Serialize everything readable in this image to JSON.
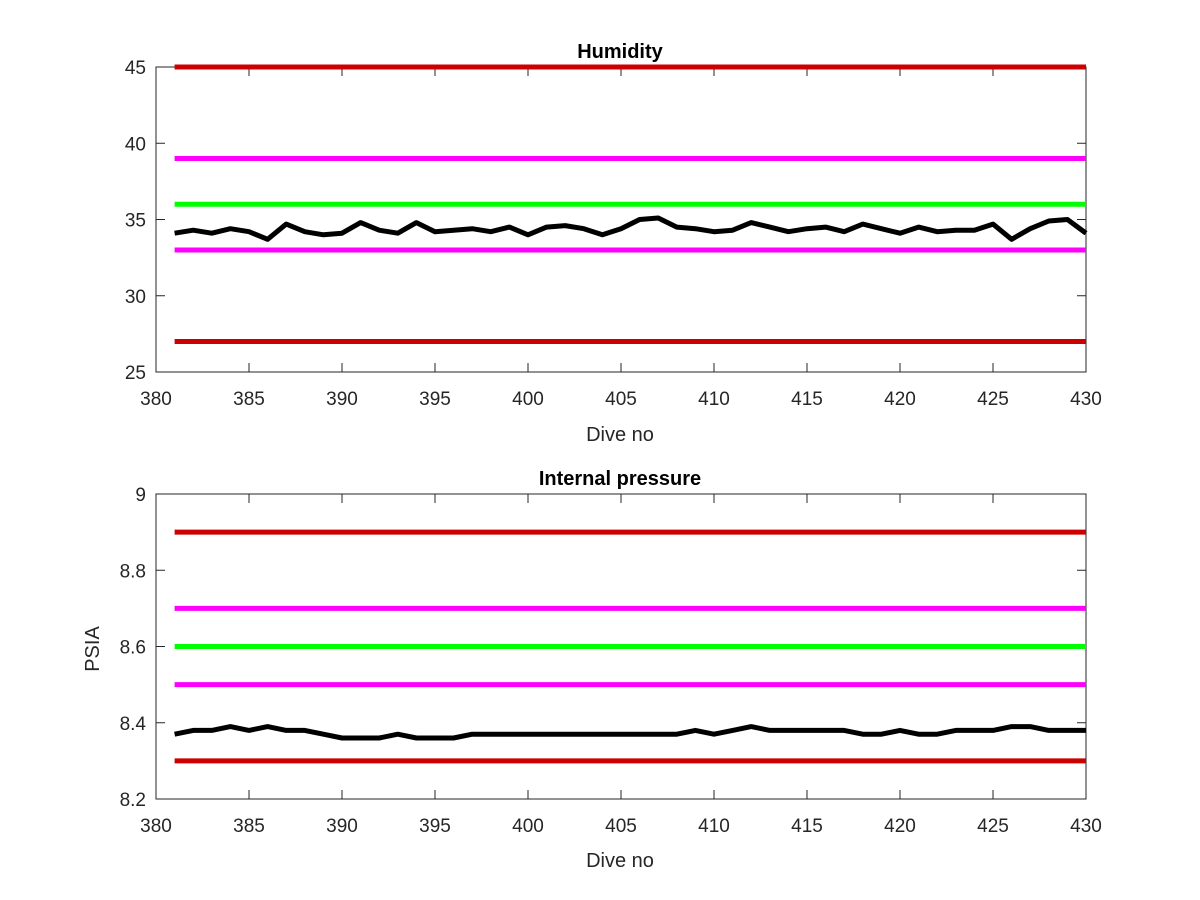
{
  "chart_data": [
    {
      "type": "line",
      "title": "Humidity",
      "xlabel": "Dive no",
      "ylabel": "",
      "xlim": [
        380,
        430
      ],
      "ylim": [
        25,
        45
      ],
      "xticks": [
        380,
        385,
        390,
        395,
        400,
        405,
        410,
        415,
        420,
        425,
        430
      ],
      "yticks": [
        25,
        30,
        35,
        40,
        45
      ],
      "grid": false,
      "thresholds": [
        {
          "value": 45,
          "color": "#cc0000"
        },
        {
          "value": 39,
          "color": "#ff00ff"
        },
        {
          "value": 36,
          "color": "#00ff00"
        },
        {
          "value": 33,
          "color": "#ff00ff"
        },
        {
          "value": 27,
          "color": "#cc0000"
        }
      ],
      "series": [
        {
          "color": "#000000",
          "x": [
            381,
            382,
            383,
            384,
            385,
            386,
            387,
            388,
            389,
            390,
            391,
            392,
            393,
            394,
            395,
            396,
            397,
            398,
            399,
            400,
            401,
            402,
            403,
            404,
            405,
            406,
            407,
            408,
            409,
            410,
            411,
            412,
            413,
            414,
            415,
            416,
            417,
            418,
            419,
            420,
            421,
            422,
            423,
            424,
            425,
            426,
            427,
            428,
            429,
            430
          ],
          "values": [
            34.1,
            34.3,
            34.1,
            34.4,
            34.2,
            33.7,
            34.7,
            34.2,
            34.0,
            34.1,
            34.8,
            34.3,
            34.1,
            34.8,
            34.2,
            34.3,
            34.4,
            34.2,
            34.5,
            34.0,
            34.5,
            34.6,
            34.4,
            34.0,
            34.4,
            35.0,
            35.1,
            34.5,
            34.4,
            34.2,
            34.3,
            34.8,
            34.5,
            34.2,
            34.4,
            34.5,
            34.2,
            34.7,
            34.4,
            34.1,
            34.5,
            34.2,
            34.3,
            34.3,
            34.7,
            33.7,
            34.4,
            34.9,
            35.0,
            34.1
          ]
        }
      ]
    },
    {
      "type": "line",
      "title": "Internal pressure",
      "xlabel": "Dive no",
      "ylabel": "PSIA",
      "xlim": [
        380,
        430
      ],
      "ylim": [
        8.2,
        9.0
      ],
      "xticks": [
        380,
        385,
        390,
        395,
        400,
        405,
        410,
        415,
        420,
        425,
        430
      ],
      "yticks": [
        8.2,
        8.4,
        8.6,
        8.8,
        9.0
      ],
      "ytick_labels": [
        "8.2",
        "8.4",
        "8.6",
        "8.8",
        "9"
      ],
      "grid": false,
      "thresholds": [
        {
          "value": 8.9,
          "color": "#cc0000"
        },
        {
          "value": 8.7,
          "color": "#ff00ff"
        },
        {
          "value": 8.6,
          "color": "#00ff00"
        },
        {
          "value": 8.5,
          "color": "#ff00ff"
        },
        {
          "value": 8.3,
          "color": "#cc0000"
        }
      ],
      "series": [
        {
          "color": "#000000",
          "x": [
            381,
            382,
            383,
            384,
            385,
            386,
            387,
            388,
            389,
            390,
            391,
            392,
            393,
            394,
            395,
            396,
            397,
            398,
            399,
            400,
            401,
            402,
            403,
            404,
            405,
            406,
            407,
            408,
            409,
            410,
            411,
            412,
            413,
            414,
            415,
            416,
            417,
            418,
            419,
            420,
            421,
            422,
            423,
            424,
            425,
            426,
            427,
            428,
            429,
            430
          ],
          "values": [
            8.37,
            8.38,
            8.38,
            8.39,
            8.38,
            8.39,
            8.38,
            8.38,
            8.37,
            8.36,
            8.36,
            8.36,
            8.37,
            8.36,
            8.36,
            8.36,
            8.37,
            8.37,
            8.37,
            8.37,
            8.37,
            8.37,
            8.37,
            8.37,
            8.37,
            8.37,
            8.37,
            8.37,
            8.38,
            8.37,
            8.38,
            8.39,
            8.38,
            8.38,
            8.38,
            8.38,
            8.38,
            8.37,
            8.37,
            8.38,
            8.37,
            8.37,
            8.38,
            8.38,
            8.38,
            8.39,
            8.39,
            8.38,
            8.38,
            8.38
          ]
        }
      ]
    }
  ]
}
